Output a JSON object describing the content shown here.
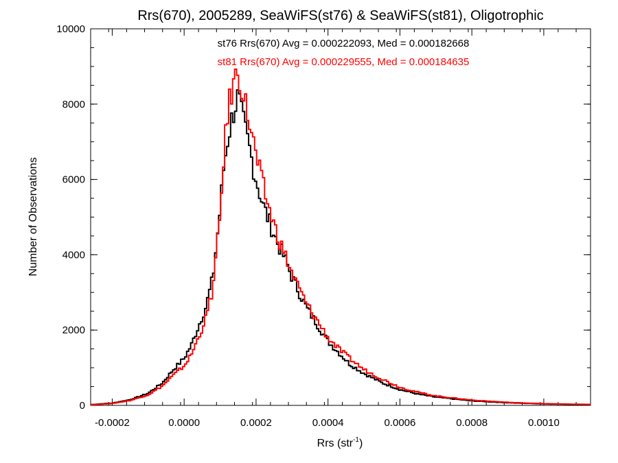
{
  "chart_data": {
    "type": "histogram",
    "title": "Rrs(670), 2005289, SeaWiFS(st76) & SeaWiFS(st81), Oligotrophic",
    "xlabel": "Rrs (str",
    "xlabel_sup": "-1",
    "xlabel_close": ")",
    "ylabel": "Number of Observations",
    "xlim": [
      -0.00026,
      0.00113
    ],
    "ylim": [
      0,
      10000
    ],
    "x_ticks": [
      -0.0002,
      0.0,
      0.0002,
      0.0004,
      0.0006,
      0.0008,
      0.001
    ],
    "x_tick_labels": [
      "-0.0002",
      "0.0000",
      "0.0002",
      "0.0004",
      "0.0006",
      "0.0008",
      "0.0010"
    ],
    "y_ticks": [
      0,
      2000,
      4000,
      6000,
      8000,
      10000
    ],
    "y_tick_labels": [
      "0",
      "2000",
      "4000",
      "6000",
      "8000",
      "10000"
    ],
    "bin_width": 5.56e-06,
    "series": [
      {
        "name": "st76",
        "color": "#000000",
        "annotation": "st76 Rrs(670) Avg = 0.000222093, Med = 0.000182668",
        "values": [
          [
            -0.00026,
            20
          ],
          [
            -0.0002,
            60
          ],
          [
            -0.00015,
            150
          ],
          [
            -0.0001,
            320
          ],
          [
            -6e-05,
            600
          ],
          [
            -3e-05,
            950
          ],
          [
            0.0,
            1250
          ],
          [
            2e-05,
            1600
          ],
          [
            4e-05,
            2100
          ],
          [
            6e-05,
            2600
          ],
          [
            8e-05,
            3400
          ],
          [
            0.0001,
            5200
          ],
          [
            0.00011,
            6300
          ],
          [
            0.00012,
            7000
          ],
          [
            0.00013,
            7500
          ],
          [
            0.00014,
            7900
          ],
          [
            0.00015,
            8200
          ],
          [
            0.00016,
            7700
          ],
          [
            0.00017,
            7300
          ],
          [
            0.00018,
            6900
          ],
          [
            0.0002,
            6000
          ],
          [
            0.00022,
            5300
          ],
          [
            0.00024,
            4800
          ],
          [
            0.00026,
            4300
          ],
          [
            0.00028,
            3900
          ],
          [
            0.0003,
            3400
          ],
          [
            0.00032,
            3000
          ],
          [
            0.00034,
            2600
          ],
          [
            0.00036,
            2300
          ],
          [
            0.00038,
            2000
          ],
          [
            0.0004,
            1700
          ],
          [
            0.00043,
            1400
          ],
          [
            0.00046,
            1100
          ],
          [
            0.0005,
            850
          ],
          [
            0.00055,
            600
          ],
          [
            0.0006,
            420
          ],
          [
            0.00065,
            300
          ],
          [
            0.0007,
            220
          ],
          [
            0.0008,
            120
          ],
          [
            0.0009,
            70
          ],
          [
            0.001,
            40
          ],
          [
            0.00113,
            20
          ]
        ]
      },
      {
        "name": "st81",
        "color": "#ff0000",
        "annotation": "st81 Rrs(670) Avg = 0.000229555, Med = 0.000184635",
        "values": [
          [
            -0.00026,
            15
          ],
          [
            -0.0002,
            50
          ],
          [
            -0.00015,
            130
          ],
          [
            -0.0001,
            280
          ],
          [
            -6e-05,
            520
          ],
          [
            -3e-05,
            800
          ],
          [
            0.0,
            1050
          ],
          [
            2e-05,
            1350
          ],
          [
            4e-05,
            1800
          ],
          [
            6e-05,
            2300
          ],
          [
            8e-05,
            3100
          ],
          [
            0.0001,
            5000
          ],
          [
            0.00011,
            6600
          ],
          [
            0.00012,
            7600
          ],
          [
            0.00013,
            8300
          ],
          [
            0.00014,
            8600
          ],
          [
            0.00015,
            8900
          ],
          [
            0.00016,
            8500
          ],
          [
            0.00017,
            8000
          ],
          [
            0.00018,
            7600
          ],
          [
            0.0002,
            6600
          ],
          [
            0.00022,
            5800
          ],
          [
            0.00024,
            5100
          ],
          [
            0.00026,
            4500
          ],
          [
            0.00028,
            4000
          ],
          [
            0.0003,
            3500
          ],
          [
            0.00032,
            3100
          ],
          [
            0.00034,
            2700
          ],
          [
            0.00036,
            2400
          ],
          [
            0.00038,
            2100
          ],
          [
            0.0004,
            1800
          ],
          [
            0.00043,
            1500
          ],
          [
            0.00046,
            1250
          ],
          [
            0.0005,
            950
          ],
          [
            0.00055,
            700
          ],
          [
            0.0006,
            480
          ],
          [
            0.00065,
            350
          ],
          [
            0.0007,
            250
          ],
          [
            0.0008,
            140
          ],
          [
            0.0009,
            80
          ],
          [
            0.001,
            45
          ],
          [
            0.00113,
            25
          ]
        ]
      }
    ]
  }
}
